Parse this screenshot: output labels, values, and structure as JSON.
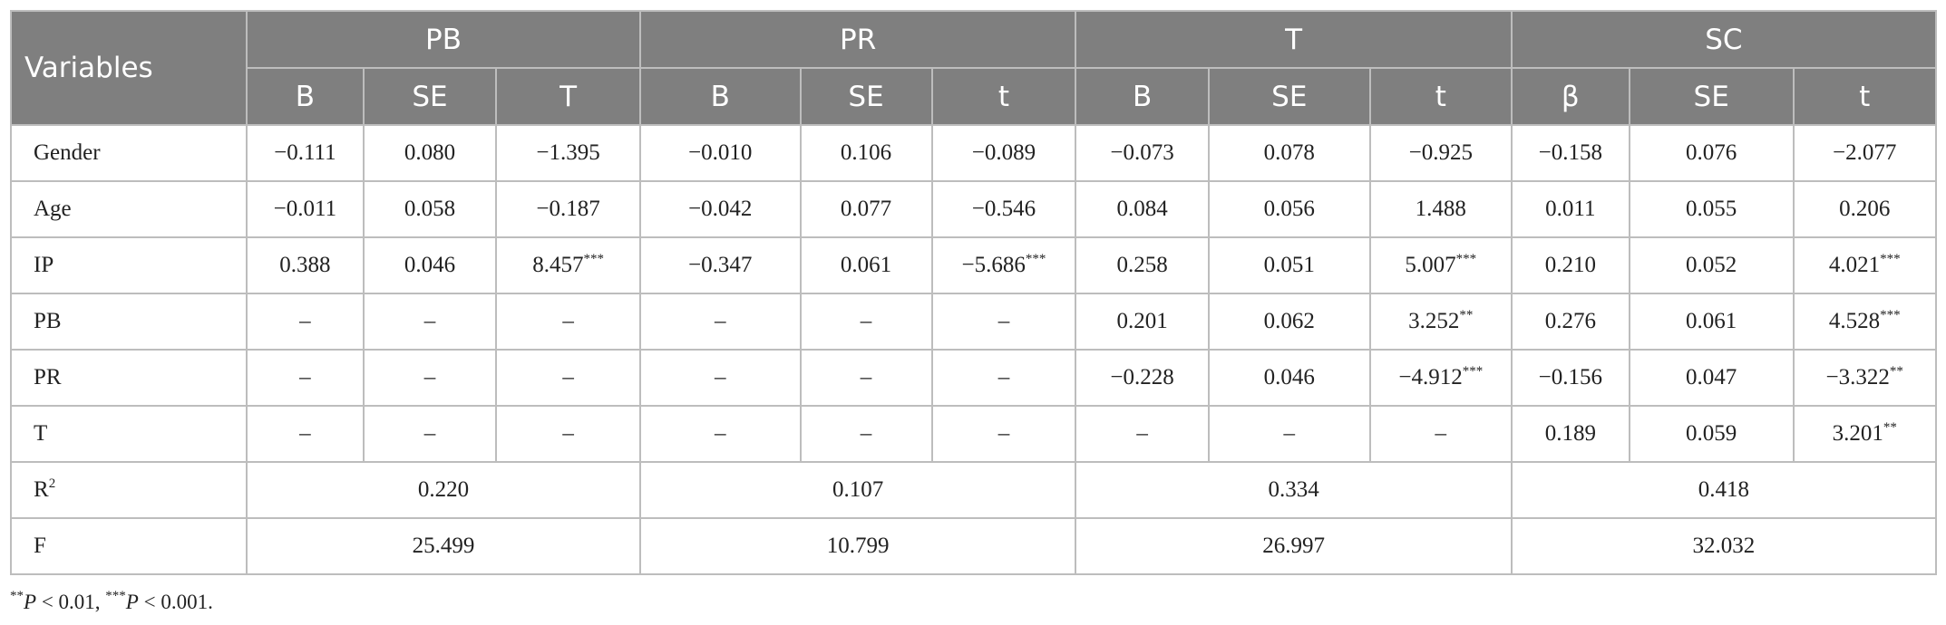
{
  "table": {
    "groups": [
      {
        "label": "Variables"
      },
      {
        "label": "PB"
      },
      {
        "label": "PR"
      },
      {
        "label": "T"
      },
      {
        "label": "SC"
      }
    ],
    "subheaders": [
      "B",
      "SE",
      "T",
      "B",
      "SE",
      "t",
      "B",
      "SE",
      "t",
      "β",
      "SE",
      "t"
    ],
    "rows": [
      {
        "label": "Gender",
        "cells": [
          "−0.111",
          "0.080",
          "−1.395",
          "−0.010",
          "0.106",
          "−0.089",
          "−0.073",
          "0.078",
          "−0.925",
          "−0.158",
          "0.076",
          "−2.077"
        ]
      },
      {
        "label": "Age",
        "cells": [
          "−0.011",
          "0.058",
          "−0.187",
          "−0.042",
          "0.077",
          "−0.546",
          "0.084",
          "0.056",
          "1.488",
          "0.011",
          "0.055",
          "0.206"
        ]
      },
      {
        "label": "IP",
        "cells": [
          "0.388",
          "0.046",
          {
            "v": "8.457",
            "sig": "***"
          },
          "−0.347",
          "0.061",
          {
            "v": "−5.686",
            "sig": "***"
          },
          "0.258",
          "0.051",
          {
            "v": "5.007",
            "sig": "***"
          },
          "0.210",
          "0.052",
          {
            "v": "4.021",
            "sig": "***"
          }
        ]
      },
      {
        "label": "PB",
        "cells": [
          "–",
          "–",
          "–",
          "–",
          "–",
          "–",
          "0.201",
          "0.062",
          {
            "v": "3.252",
            "sig": "**"
          },
          "0.276",
          "0.061",
          {
            "v": "4.528",
            "sig": "***"
          }
        ]
      },
      {
        "label": "PR",
        "cells": [
          "–",
          "–",
          "–",
          "–",
          "–",
          "–",
          "−0.228",
          "0.046",
          {
            "v": "−4.912",
            "sig": "***"
          },
          "−0.156",
          "0.047",
          {
            "v": "−3.322",
            "sig": "**"
          }
        ]
      },
      {
        "label": "T",
        "cells": [
          "–",
          "–",
          "–",
          "–",
          "–",
          "–",
          "–",
          "–",
          "–",
          "0.189",
          "0.059",
          {
            "v": "3.201",
            "sig": "**"
          }
        ]
      }
    ],
    "summary_rows": [
      {
        "label": {
          "main": "R",
          "sup": "2"
        },
        "values": [
          "0.220",
          "0.107",
          "0.334",
          "0.418"
        ]
      },
      {
        "label": {
          "main": "F"
        },
        "values": [
          "25.499",
          "10.799",
          "26.997",
          "32.032"
        ]
      }
    ]
  },
  "footnote": {
    "segments": [
      {
        "sup": "**"
      },
      {
        "italic": "P"
      },
      {
        "text": " < 0.01, "
      },
      {
        "sup": "***"
      },
      {
        "italic": "P"
      },
      {
        "text": " < 0.001."
      }
    ]
  }
}
